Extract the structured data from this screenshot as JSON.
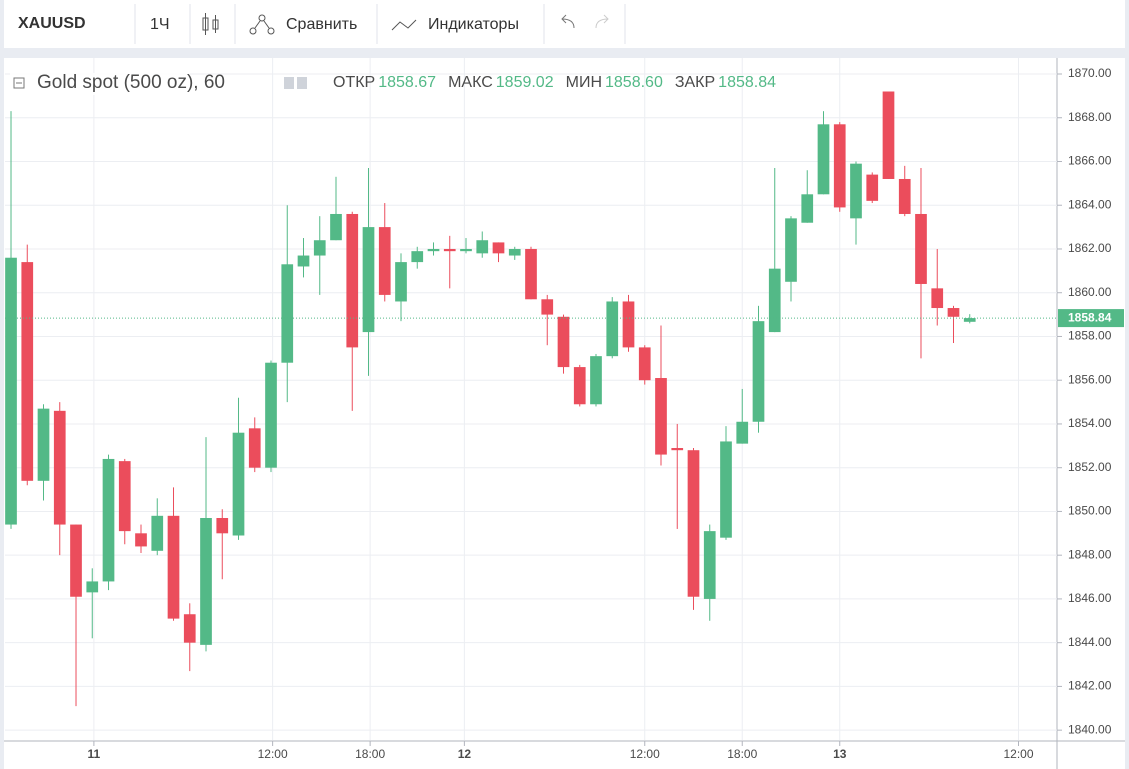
{
  "toolbar": {
    "symbol": "XAUUSD",
    "interval": "1Ч",
    "compare": "Сравнить",
    "indicators": "Индикаторы"
  },
  "chart_data": {
    "type": "candlestick",
    "title": "Gold spot (500 oz), 60",
    "ohlc_legend": [
      {
        "label": "ОТКР",
        "value": "1858.67"
      },
      {
        "label": "МАКС",
        "value": "1859.02"
      },
      {
        "label": "МИН",
        "value": "1858.60"
      },
      {
        "label": "ЗАКР",
        "value": "1858.84"
      }
    ],
    "categories": [
      null,
      null,
      null,
      null,
      null,
      null,
      null,
      null,
      null,
      null,
      null,
      null,
      null,
      null,
      null,
      null,
      null,
      null,
      null,
      null,
      null,
      null,
      null,
      null,
      null,
      null,
      null,
      null,
      null,
      null,
      null,
      null,
      null,
      null,
      null,
      null,
      null,
      null,
      null,
      null,
      null,
      null,
      null,
      null,
      null,
      null,
      null,
      null,
      null,
      null,
      null,
      null,
      null,
      null,
      null,
      null,
      null,
      null,
      null,
      null
    ],
    "open": [
      1849.4,
      1861.4,
      1851.4,
      1854.6,
      1849.4,
      1846.3,
      1846.8,
      1852.3,
      1849.0,
      1848.2,
      1849.8,
      1845.3,
      1843.9,
      1849.7,
      1848.9,
      1853.8,
      1852.0,
      1856.8,
      1861.2,
      1861.7,
      1862.4,
      1863.6,
      1858.2,
      1863.0,
      1859.6,
      1861.4,
      1861.9,
      1862.0,
      1861.9,
      1861.8,
      1862.3,
      1861.7,
      1862.0,
      1859.7,
      1858.9,
      1856.6,
      1854.9,
      1857.1,
      1859.6,
      1857.5,
      1856.1,
      1852.9,
      1852.8,
      1846.0,
      1848.8,
      1853.1,
      1854.1,
      1858.2,
      1860.5,
      1863.2,
      1864.5,
      1867.7,
      1863.4,
      1865.4,
      1869.2,
      1865.2,
      1863.6,
      1860.2,
      1859.3,
      1858.67
    ],
    "high": [
      1868.3,
      1862.2,
      1854.9,
      1855.0,
      1849.4,
      1847.4,
      1852.6,
      1852.4,
      1849.4,
      1850.6,
      1851.1,
      1845.8,
      1853.4,
      1850.1,
      1855.2,
      1854.3,
      1856.9,
      1864.0,
      1862.5,
      1863.5,
      1865.3,
      1863.7,
      1865.7,
      1864.1,
      1861.8,
      1862.1,
      1862.3,
      1862.6,
      1862.5,
      1862.8,
      1862.3,
      1862.1,
      1862.1,
      1859.9,
      1859.0,
      1856.7,
      1857.2,
      1859.8,
      1859.9,
      1857.6,
      1858.5,
      1854.0,
      1852.9,
      1849.4,
      1853.9,
      1855.6,
      1859.4,
      1865.7,
      1863.5,
      1865.6,
      1868.3,
      1867.8,
      1866.0,
      1865.5,
      1869.2,
      1865.8,
      1865.7,
      1862.0,
      1859.4,
      1859.02
    ],
    "low": [
      1849.2,
      1851.2,
      1850.5,
      1848.0,
      1841.1,
      1844.2,
      1846.4,
      1848.5,
      1848.1,
      1848.0,
      1845.0,
      1842.7,
      1843.6,
      1846.9,
      1848.7,
      1851.8,
      1851.8,
      1855.0,
      1860.7,
      1859.9,
      1862.4,
      1854.6,
      1856.2,
      1859.6,
      1858.7,
      1861.1,
      1861.7,
      1860.2,
      1861.8,
      1861.6,
      1861.4,
      1861.5,
      1859.7,
      1857.6,
      1856.3,
      1854.8,
      1854.8,
      1857.0,
      1857.3,
      1855.8,
      1852.1,
      1849.2,
      1845.5,
      1845.0,
      1848.7,
      1853.1,
      1853.6,
      1858.2,
      1859.6,
      1863.2,
      1864.5,
      1863.7,
      1862.2,
      1864.1,
      1865.2,
      1863.5,
      1857.0,
      1858.5,
      1857.7,
      1858.6
    ],
    "close": [
      1861.6,
      1851.4,
      1854.7,
      1849.4,
      1846.1,
      1846.8,
      1852.4,
      1849.1,
      1848.4,
      1849.8,
      1845.1,
      1844.0,
      1849.7,
      1849.0,
      1853.6,
      1852.0,
      1856.8,
      1861.3,
      1861.7,
      1862.4,
      1863.6,
      1857.5,
      1863.0,
      1859.9,
      1861.4,
      1861.9,
      1862.0,
      1861.9,
      1862.0,
      1862.4,
      1861.8,
      1862.0,
      1859.7,
      1859.0,
      1856.6,
      1854.9,
      1857.1,
      1859.6,
      1857.5,
      1856.0,
      1852.6,
      1852.8,
      1846.1,
      1849.1,
      1853.2,
      1854.1,
      1858.7,
      1861.1,
      1863.4,
      1864.5,
      1867.7,
      1863.9,
      1865.9,
      1864.2,
      1865.2,
      1863.6,
      1860.4,
      1859.3,
      1858.9,
      1858.84
    ],
    "up_color": "#53b987",
    "down_color": "#eb4d5c",
    "last_price": {
      "value": 1858.84,
      "label": "1858.84"
    },
    "xlim": [
      -0.37,
      64.37
    ],
    "xticks": [
      {
        "value": 5.1,
        "label": "11"
      },
      {
        "value": 16.1,
        "label": "12:00"
      },
      {
        "value": 22.1,
        "label": "18:00"
      },
      {
        "value": 27.9,
        "label": "12"
      },
      {
        "value": 39,
        "label": "12:00"
      },
      {
        "value": 45,
        "label": "18:00"
      },
      {
        "value": 51,
        "label": "13"
      },
      {
        "value": 62,
        "label": "12:00"
      }
    ],
    "ylim": [
      1839.55,
      1870.64
    ],
    "yticks": [
      {
        "value": 1840,
        "label": "1840.00"
      },
      {
        "value": 1842,
        "label": "1842.00"
      },
      {
        "value": 1844,
        "label": "1844.00"
      },
      {
        "value": 1846,
        "label": "1846.00"
      },
      {
        "value": 1848,
        "label": "1848.00"
      },
      {
        "value": 1850,
        "label": "1850.00"
      },
      {
        "value": 1852,
        "label": "1852.00"
      },
      {
        "value": 1854,
        "label": "1854.00"
      },
      {
        "value": 1856,
        "label": "1856.00"
      },
      {
        "value": 1858,
        "label": "1858.00"
      },
      {
        "value": 1860,
        "label": "1860.00"
      },
      {
        "value": 1862,
        "label": "1862.00"
      },
      {
        "value": 1864,
        "label": "1864.00"
      },
      {
        "value": 1866,
        "label": "1866.00"
      },
      {
        "value": 1868,
        "label": "1868.00"
      },
      {
        "value": 1870,
        "label": "1870.00"
      }
    ],
    "grid": true
  }
}
